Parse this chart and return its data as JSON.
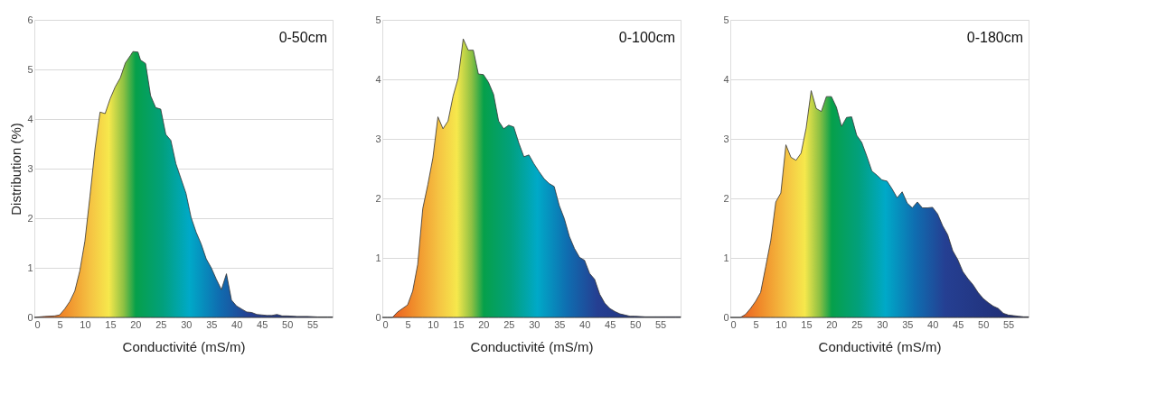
{
  "chart_data": [
    {
      "type": "area",
      "title": "0-50cm",
      "xlabel": "Conductivité (mS/m)",
      "ylabel": "Distribution (%)",
      "xlim": [
        0,
        59
      ],
      "xticks": [
        0,
        5,
        10,
        15,
        20,
        25,
        30,
        35,
        40,
        45,
        50,
        55
      ],
      "ylim": [
        0,
        6
      ],
      "yticks": [
        0,
        1,
        2,
        3,
        4,
        5,
        6
      ],
      "grid": "y",
      "series": [
        {
          "color": "#333333",
          "x": [
            0,
            2,
            4,
            5,
            6,
            7,
            8,
            9,
            10,
            11,
            12,
            12.5,
            13,
            14,
            15,
            16,
            17,
            18,
            19,
            19.5,
            20.5,
            21,
            22,
            23,
            24,
            25,
            26,
            27,
            28,
            29,
            30,
            31,
            32,
            33,
            34,
            35,
            36,
            37,
            38,
            39,
            40,
            41,
            42,
            43,
            44,
            45,
            46,
            47,
            48,
            49,
            50,
            52,
            54,
            56,
            58,
            59
          ],
          "values": [
            0,
            0.02,
            0.03,
            0.05,
            0.17,
            0.32,
            0.53,
            0.94,
            1.54,
            2.44,
            3.4,
            3.78,
            4.14,
            4.11,
            4.41,
            4.65,
            4.83,
            5.13,
            5.28,
            5.36,
            5.35,
            5.19,
            5.12,
            4.47,
            4.23,
            4.2,
            3.69,
            3.57,
            3.1,
            2.8,
            2.5,
            2.02,
            1.72,
            1.48,
            1.18,
            1.0,
            0.77,
            0.56,
            0.88,
            0.35,
            0.23,
            0.17,
            0.11,
            0.1,
            0.06,
            0.05,
            0.04,
            0.04,
            0.06,
            0.03,
            0.03,
            0.02,
            0.02,
            0.01,
            0.01,
            0.01
          ]
        }
      ]
    },
    {
      "type": "area",
      "title": "0-100cm",
      "xlabel": "Conductivité (mS/m)",
      "xlim": [
        0,
        59
      ],
      "xticks": [
        0,
        5,
        10,
        15,
        20,
        25,
        30,
        35,
        40,
        45,
        50,
        55
      ],
      "ylim": [
        0,
        5
      ],
      "yticks": [
        0,
        1,
        2,
        3,
        4,
        5
      ],
      "grid": "y",
      "series": [
        {
          "color": "#333333",
          "x": [
            0,
            1,
            2,
            3,
            4,
            5,
            6,
            7,
            8,
            9,
            10,
            11,
            12,
            13,
            14,
            15,
            16,
            17,
            18,
            19,
            20,
            21,
            22,
            23,
            24,
            25,
            26,
            27,
            28,
            29,
            30,
            31,
            32,
            33,
            34,
            35,
            36,
            37,
            38,
            39,
            40,
            41,
            42,
            43,
            44,
            45,
            46,
            47,
            48,
            49,
            50,
            52,
            54,
            56,
            58,
            59
          ],
          "values": [
            0,
            0,
            0,
            0.09,
            0.15,
            0.21,
            0.44,
            0.89,
            1.83,
            2.23,
            2.68,
            3.37,
            3.17,
            3.3,
            3.72,
            4.02,
            4.68,
            4.49,
            4.49,
            4.09,
            4.08,
            3.95,
            3.75,
            3.3,
            3.17,
            3.23,
            3.2,
            2.93,
            2.7,
            2.73,
            2.58,
            2.45,
            2.33,
            2.25,
            2.2,
            1.88,
            1.66,
            1.36,
            1.16,
            1.01,
            0.96,
            0.74,
            0.64,
            0.39,
            0.24,
            0.15,
            0.1,
            0.06,
            0.04,
            0.02,
            0.02,
            0.01,
            0.01,
            0.01,
            0.01,
            0.01
          ]
        }
      ]
    },
    {
      "type": "area",
      "title": "0-180cm",
      "xlabel": "Conductivité (mS/m)",
      "xlim": [
        0,
        59
      ],
      "xticks": [
        0,
        5,
        10,
        15,
        20,
        25,
        30,
        35,
        40,
        45,
        50,
        55
      ],
      "ylim": [
        0,
        5
      ],
      "yticks": [
        0,
        1,
        2,
        3,
        4,
        5
      ],
      "grid": "y",
      "series": [
        {
          "color": "#333333",
          "x": [
            0,
            2,
            3,
            4,
            5,
            6,
            7,
            8,
            9,
            10,
            11,
            12,
            13,
            14,
            15,
            16,
            17,
            18,
            19,
            20,
            21,
            22,
            23,
            24,
            25,
            26,
            27,
            28,
            29,
            30,
            31,
            32,
            33,
            34,
            35,
            36,
            37,
            38,
            39,
            40,
            41,
            42,
            43,
            44,
            45,
            46,
            47,
            48,
            49,
            50,
            51,
            52,
            53,
            54,
            55,
            56,
            57,
            58,
            59
          ],
          "values": [
            0,
            0,
            0.05,
            0.15,
            0.27,
            0.42,
            0.85,
            1.29,
            1.94,
            2.09,
            2.9,
            2.69,
            2.64,
            2.76,
            3.18,
            3.81,
            3.51,
            3.46,
            3.71,
            3.71,
            3.53,
            3.21,
            3.36,
            3.37,
            3.06,
            2.94,
            2.71,
            2.46,
            2.39,
            2.31,
            2.29,
            2.16,
            2.01,
            2.11,
            1.92,
            1.84,
            1.94,
            1.84,
            1.84,
            1.85,
            1.74,
            1.54,
            1.39,
            1.12,
            0.97,
            0.77,
            0.65,
            0.55,
            0.42,
            0.32,
            0.25,
            0.19,
            0.15,
            0.07,
            0.04,
            0.03,
            0.02,
            0.01,
            0.01
          ]
        }
      ]
    }
  ]
}
